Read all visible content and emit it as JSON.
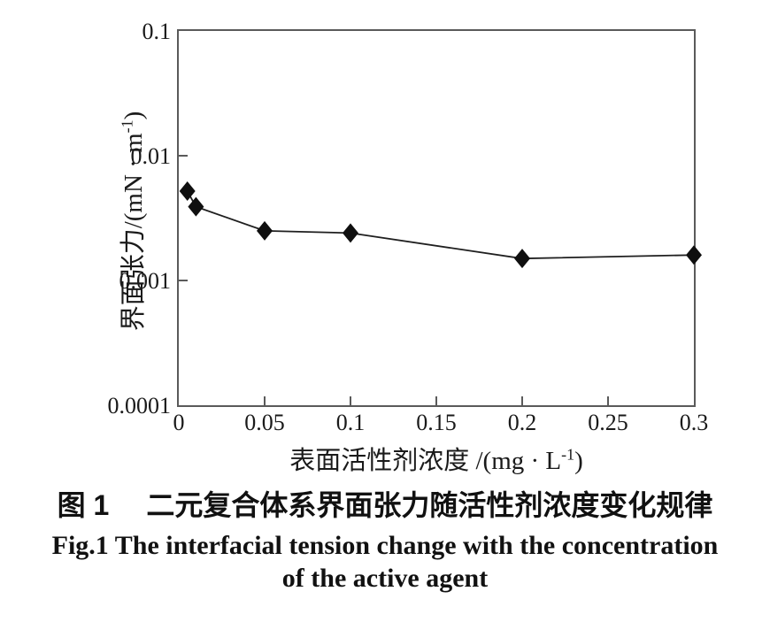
{
  "figure": {
    "caption_zh": {
      "label": "图 1",
      "title": "二元复合体系界面张力随活性剂浓度变化规律"
    },
    "caption_en": {
      "line1": "Fig.1 The interfacial tension change with the concentration",
      "line2": "of the active agent"
    }
  },
  "chart_data": {
    "type": "line",
    "series": [
      {
        "name": "界面张力",
        "marker": "diamond",
        "x": [
          0.005,
          0.01,
          0.05,
          0.1,
          0.2,
          0.3
        ],
        "y": [
          0.0052,
          0.0039,
          0.0025,
          0.0024,
          0.0015,
          0.0016
        ]
      }
    ],
    "xlabel": {
      "text": "表面活性剂浓度",
      "unit_pre": " /(mg · L",
      "unit_sup": "-1",
      "unit_post": ")"
    },
    "ylabel": {
      "text": "界面张力",
      "unit_pre": "/(mN · m",
      "unit_sup": "-1",
      "unit_post": ")"
    },
    "xlim": [
      0,
      0.3
    ],
    "ylim": [
      0.0001,
      0.1
    ],
    "y_scale": "log",
    "x_ticks": [
      0,
      0.05,
      0.1,
      0.15,
      0.2,
      0.25,
      0.3
    ],
    "x_tick_labels": [
      "0",
      "0.05",
      "0.1",
      "0.15",
      "0.2",
      "0.25",
      "0.3"
    ],
    "y_ticks": [
      0.1,
      0.01,
      0.001,
      0.0001
    ],
    "y_tick_labels": [
      "0.1",
      "0.01",
      "0.001",
      "0.0001"
    ],
    "grid": "off",
    "legend": "none",
    "colors": {
      "marker": "#0f0f0f",
      "line": "#1f1f1f",
      "axis": "#5a5a5a",
      "text": "#1a1a1a"
    }
  }
}
